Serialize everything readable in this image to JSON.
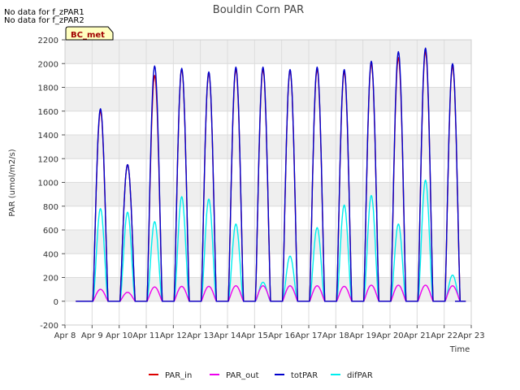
{
  "chart_data": {
    "type": "line",
    "title": "Bouldin Corn PAR",
    "xlabel": "Time",
    "ylabel": "PAR (umol/m2/s)",
    "ylim": [
      -200,
      2200
    ],
    "xlim": [
      8,
      23
    ],
    "y_ticks": [
      -200,
      0,
      200,
      400,
      600,
      800,
      1000,
      1200,
      1400,
      1600,
      1800,
      2000,
      2200
    ],
    "x_ticks": [
      {
        "value": 8,
        "label": "Apr 8"
      },
      {
        "value": 9,
        "label": "Apr 9"
      },
      {
        "value": 10,
        "label": "Apr 10"
      },
      {
        "value": 11,
        "label": "Apr 11"
      },
      {
        "value": 12,
        "label": "Apr 12"
      },
      {
        "value": 13,
        "label": "Apr 13"
      },
      {
        "value": 14,
        "label": "Apr 14"
      },
      {
        "value": 15,
        "label": "Apr 15"
      },
      {
        "value": 16,
        "label": "Apr 16"
      },
      {
        "value": 17,
        "label": "Apr 17"
      },
      {
        "value": 18,
        "label": "Apr 18"
      },
      {
        "value": 19,
        "label": "Apr 19"
      },
      {
        "value": 20,
        "label": "Apr 20"
      },
      {
        "value": 21,
        "label": "Apr 21"
      },
      {
        "value": 22,
        "label": "Apr 22"
      },
      {
        "value": 23,
        "label": "Apr 23"
      }
    ],
    "notes": [
      "No data for f_zPAR1",
      "No data for f_zPAR2"
    ],
    "badge": "BC_met",
    "grid": true,
    "legend_position": "bottom",
    "series": [
      {
        "name": "PAR_in",
        "color": "#dd0000",
        "daily_peaks": [
          1600,
          1150,
          1900,
          1950,
          1920,
          1950,
          1950,
          1940,
          1950,
          1930,
          2000,
          2050,
          2100,
          1980
        ]
      },
      {
        "name": "PAR_out",
        "color": "#ee00ee",
        "daily_peaks": [
          100,
          75,
          120,
          125,
          125,
          130,
          130,
          130,
          130,
          125,
          135,
          135,
          135,
          130
        ]
      },
      {
        "name": "totPAR",
        "color": "#0000cc",
        "daily_peaks": [
          1620,
          1150,
          1980,
          1960,
          1930,
          1970,
          1970,
          1950,
          1970,
          1950,
          2020,
          2100,
          2130,
          2000
        ]
      },
      {
        "name": "difPAR",
        "color": "#00eeee",
        "daily_peaks": [
          780,
          750,
          670,
          880,
          860,
          650,
          160,
          380,
          620,
          810,
          890,
          650,
          1020,
          220
        ]
      }
    ]
  }
}
